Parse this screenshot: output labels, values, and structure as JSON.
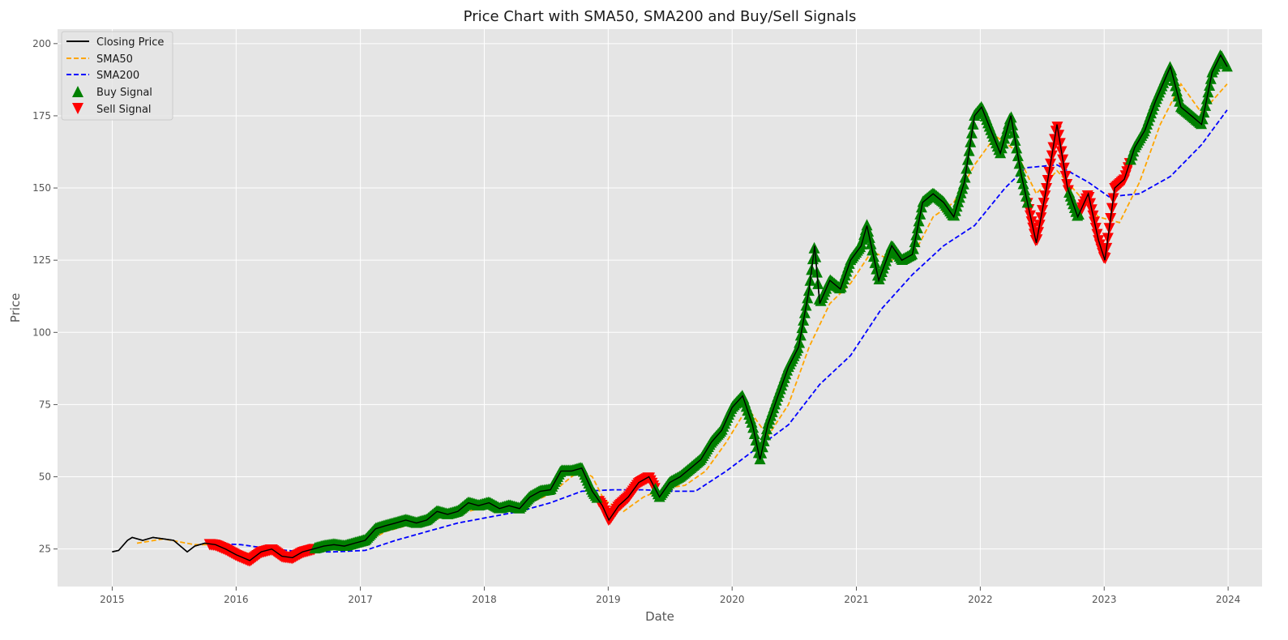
{
  "chart_data": {
    "type": "line",
    "title": "Price Chart with SMA50, SMA200 and Buy/Sell Signals",
    "xlabel": "Date",
    "ylabel": "Price",
    "xlim": [
      "2014-07-24",
      "2024-04-10"
    ],
    "ylim": [
      12,
      205
    ],
    "x_ticks": [
      "2015",
      "2016",
      "2017",
      "2018",
      "2019",
      "2020",
      "2021",
      "2022",
      "2023",
      "2024"
    ],
    "y_ticks": [
      25,
      50,
      75,
      100,
      125,
      150,
      175,
      200
    ],
    "grid": true,
    "legend_position": "top-left",
    "colors": {
      "closing": "#000000",
      "sma50": "#FFA500",
      "sma200": "#0000FF",
      "buy": "#008000",
      "sell": "#FF0000",
      "plot_bg": "#E5E5E5",
      "grid": "#FFFFFF"
    },
    "series": [
      {
        "name": "Closing Price",
        "style": "solid",
        "points": [
          [
            "2015-01-01",
            24
          ],
          [
            "2015-01-20",
            24.5
          ],
          [
            "2015-02-15",
            28
          ],
          [
            "2015-03-01",
            29
          ],
          [
            "2015-04-01",
            28
          ],
          [
            "2015-05-01",
            29
          ],
          [
            "2015-06-01",
            28.5
          ],
          [
            "2015-07-01",
            28
          ],
          [
            "2015-08-10",
            24
          ],
          [
            "2015-09-01",
            26
          ],
          [
            "2015-10-01",
            27
          ],
          [
            "2015-11-01",
            26.5
          ],
          [
            "2015-12-01",
            25
          ],
          [
            "2016-01-01",
            23
          ],
          [
            "2016-02-10",
            21
          ],
          [
            "2016-03-15",
            24
          ],
          [
            "2016-04-15",
            25
          ],
          [
            "2016-05-15",
            22.5
          ],
          [
            "2016-06-15",
            22
          ],
          [
            "2016-07-15",
            24
          ],
          [
            "2016-08-15",
            25
          ],
          [
            "2016-09-15",
            26
          ],
          [
            "2016-10-15",
            26.5
          ],
          [
            "2016-11-15",
            26
          ],
          [
            "2016-12-15",
            27
          ],
          [
            "2017-01-15",
            28
          ],
          [
            "2017-02-15",
            32
          ],
          [
            "2017-03-15",
            33
          ],
          [
            "2017-04-15",
            34
          ],
          [
            "2017-05-15",
            35
          ],
          [
            "2017-06-15",
            34
          ],
          [
            "2017-07-15",
            35
          ],
          [
            "2017-08-15",
            38
          ],
          [
            "2017-09-15",
            37
          ],
          [
            "2017-10-15",
            38
          ],
          [
            "2017-11-15",
            41
          ],
          [
            "2017-12-15",
            40
          ],
          [
            "2018-01-15",
            41
          ],
          [
            "2018-02-15",
            39
          ],
          [
            "2018-03-15",
            40
          ],
          [
            "2018-04-15",
            39
          ],
          [
            "2018-05-15",
            43
          ],
          [
            "2018-06-15",
            45
          ],
          [
            "2018-07-15",
            45.5
          ],
          [
            "2018-08-15",
            52
          ],
          [
            "2018-09-15",
            52
          ],
          [
            "2018-10-15",
            53
          ],
          [
            "2018-11-15",
            45
          ],
          [
            "2018-12-15",
            40
          ],
          [
            "2019-01-03",
            35
          ],
          [
            "2019-02-01",
            40
          ],
          [
            "2019-03-01",
            43
          ],
          [
            "2019-04-01",
            48
          ],
          [
            "2019-05-01",
            50
          ],
          [
            "2019-06-01",
            43
          ],
          [
            "2019-07-01",
            48
          ],
          [
            "2019-08-01",
            50
          ],
          [
            "2019-09-01",
            53
          ],
          [
            "2019-10-01",
            56
          ],
          [
            "2019-11-01",
            62
          ],
          [
            "2019-12-01",
            66
          ],
          [
            "2020-01-01",
            74
          ],
          [
            "2020-02-01",
            78
          ],
          [
            "2020-03-01",
            68
          ],
          [
            "2020-03-23",
            56
          ],
          [
            "2020-04-15",
            68
          ],
          [
            "2020-05-15",
            78
          ],
          [
            "2020-06-15",
            88
          ],
          [
            "2020-07-15",
            95
          ],
          [
            "2020-08-15",
            115
          ],
          [
            "2020-08-31",
            130
          ],
          [
            "2020-09-15",
            110
          ],
          [
            "2020-10-15",
            118
          ],
          [
            "2020-11-15",
            115
          ],
          [
            "2020-12-15",
            125
          ],
          [
            "2021-01-15",
            130
          ],
          [
            "2021-02-01",
            137
          ],
          [
            "2021-03-08",
            118
          ],
          [
            "2021-04-15",
            130
          ],
          [
            "2021-05-15",
            125
          ],
          [
            "2021-06-15",
            127
          ],
          [
            "2021-07-15",
            145
          ],
          [
            "2021-08-15",
            148
          ],
          [
            "2021-09-15",
            145
          ],
          [
            "2021-10-15",
            140
          ],
          [
            "2021-11-15",
            152
          ],
          [
            "2021-12-15",
            175
          ],
          [
            "2022-01-05",
            178
          ],
          [
            "2022-02-01",
            170
          ],
          [
            "2022-03-01",
            162
          ],
          [
            "2022-04-01",
            175
          ],
          [
            "2022-05-01",
            155
          ],
          [
            "2022-06-15",
            131
          ],
          [
            "2022-07-15",
            150
          ],
          [
            "2022-08-15",
            172
          ],
          [
            "2022-09-15",
            150
          ],
          [
            "2022-10-15",
            140
          ],
          [
            "2022-11-15",
            148
          ],
          [
            "2022-12-15",
            132
          ],
          [
            "2023-01-03",
            125
          ],
          [
            "2023-02-01",
            150
          ],
          [
            "2023-03-01",
            153
          ],
          [
            "2023-04-01",
            164
          ],
          [
            "2023-05-01",
            170
          ],
          [
            "2023-06-01",
            180
          ],
          [
            "2023-07-15",
            192
          ],
          [
            "2023-08-15",
            178
          ],
          [
            "2023-09-15",
            175
          ],
          [
            "2023-10-15",
            172
          ],
          [
            "2023-11-15",
            190
          ],
          [
            "2023-12-10",
            196
          ],
          [
            "2023-12-29",
            192
          ]
        ]
      },
      {
        "name": "SMA50",
        "style": "dashed",
        "points": [
          [
            "2015-03-15",
            27
          ],
          [
            "2015-06-01",
            28.5
          ],
          [
            "2015-09-01",
            26.5
          ],
          [
            "2015-11-01",
            26.5
          ],
          [
            "2016-01-15",
            24
          ],
          [
            "2016-03-15",
            22.5
          ],
          [
            "2016-05-15",
            24
          ],
          [
            "2016-07-15",
            23
          ],
          [
            "2016-09-15",
            24.5
          ],
          [
            "2016-11-15",
            26
          ],
          [
            "2017-01-15",
            27
          ],
          [
            "2017-03-15",
            31
          ],
          [
            "2017-05-15",
            33
          ],
          [
            "2017-07-15",
            35
          ],
          [
            "2017-09-15",
            36
          ],
          [
            "2017-11-15",
            38
          ],
          [
            "2018-01-15",
            40
          ],
          [
            "2018-03-15",
            40
          ],
          [
            "2018-05-15",
            41
          ],
          [
            "2018-07-15",
            44
          ],
          [
            "2018-09-15",
            50
          ],
          [
            "2018-10-15",
            52
          ],
          [
            "2018-11-15",
            50
          ],
          [
            "2018-12-20",
            42
          ],
          [
            "2019-02-15",
            38
          ],
          [
            "2019-04-15",
            43
          ],
          [
            "2019-06-15",
            46
          ],
          [
            "2019-08-15",
            47
          ],
          [
            "2019-10-15",
            52
          ],
          [
            "2019-12-15",
            62
          ],
          [
            "2020-02-15",
            74
          ],
          [
            "2020-04-15",
            64
          ],
          [
            "2020-06-15",
            75
          ],
          [
            "2020-08-15",
            95
          ],
          [
            "2020-10-15",
            110
          ],
          [
            "2020-12-15",
            117
          ],
          [
            "2021-02-15",
            128
          ],
          [
            "2021-04-15",
            125
          ],
          [
            "2021-06-15",
            126
          ],
          [
            "2021-08-15",
            140
          ],
          [
            "2021-10-15",
            145
          ],
          [
            "2021-12-15",
            158
          ],
          [
            "2022-02-15",
            168
          ],
          [
            "2022-04-15",
            163
          ],
          [
            "2022-06-15",
            148
          ],
          [
            "2022-08-15",
            156
          ],
          [
            "2022-10-15",
            148
          ],
          [
            "2022-12-15",
            140
          ],
          [
            "2023-02-15",
            138
          ],
          [
            "2023-04-15",
            152
          ],
          [
            "2023-06-15",
            172
          ],
          [
            "2023-08-15",
            186
          ],
          [
            "2023-10-15",
            176
          ],
          [
            "2023-12-29",
            186
          ]
        ]
      },
      {
        "name": "SMA200",
        "style": "dashed",
        "points": [
          [
            "2015-10-15",
            27
          ],
          [
            "2016-01-15",
            26.5
          ],
          [
            "2016-04-15",
            25
          ],
          [
            "2016-07-15",
            24
          ],
          [
            "2016-10-15",
            24
          ],
          [
            "2017-01-15",
            24.5
          ],
          [
            "2017-04-15",
            28
          ],
          [
            "2017-07-15",
            31
          ],
          [
            "2017-10-15",
            34
          ],
          [
            "2018-01-15",
            36
          ],
          [
            "2018-04-15",
            38
          ],
          [
            "2018-07-15",
            41
          ],
          [
            "2018-10-15",
            45
          ],
          [
            "2019-01-15",
            45.5
          ],
          [
            "2019-04-15",
            45.5
          ],
          [
            "2019-07-15",
            45
          ],
          [
            "2019-09-15",
            45
          ],
          [
            "2019-12-15",
            52
          ],
          [
            "2020-03-15",
            60
          ],
          [
            "2020-06-15",
            68
          ],
          [
            "2020-09-15",
            82
          ],
          [
            "2020-12-15",
            92
          ],
          [
            "2021-03-15",
            108
          ],
          [
            "2021-06-15",
            120
          ],
          [
            "2021-09-15",
            130
          ],
          [
            "2021-12-15",
            137
          ],
          [
            "2022-03-15",
            150
          ],
          [
            "2022-05-15",
            157
          ],
          [
            "2022-08-15",
            158
          ],
          [
            "2022-11-15",
            152
          ],
          [
            "2023-01-15",
            147
          ],
          [
            "2023-04-15",
            148
          ],
          [
            "2023-07-15",
            154
          ],
          [
            "2023-10-15",
            165
          ],
          [
            "2023-12-29",
            177
          ]
        ]
      }
    ],
    "signals": {
      "buy": {
        "name": "Buy Signal",
        "ranges": [
          [
            "2016-08-20",
            "2017-01-10"
          ],
          [
            "2017-01-10",
            "2018-11-30"
          ],
          [
            "2019-05-20",
            "2020-09-10"
          ],
          [
            "2020-09-10",
            "2021-06-10"
          ],
          [
            "2021-06-10",
            "2022-05-20"
          ],
          [
            "2022-09-20",
            "2022-10-20"
          ],
          [
            "2023-03-20",
            "2023-12-29"
          ]
        ]
      },
      "sell": {
        "name": "Sell Signal",
        "ranges": [
          [
            "2015-10-15",
            "2016-08-20"
          ],
          [
            "2018-12-05",
            "2019-05-20"
          ],
          [
            "2022-05-20",
            "2022-09-20"
          ],
          [
            "2022-10-20",
            "2023-03-20"
          ]
        ]
      }
    }
  }
}
